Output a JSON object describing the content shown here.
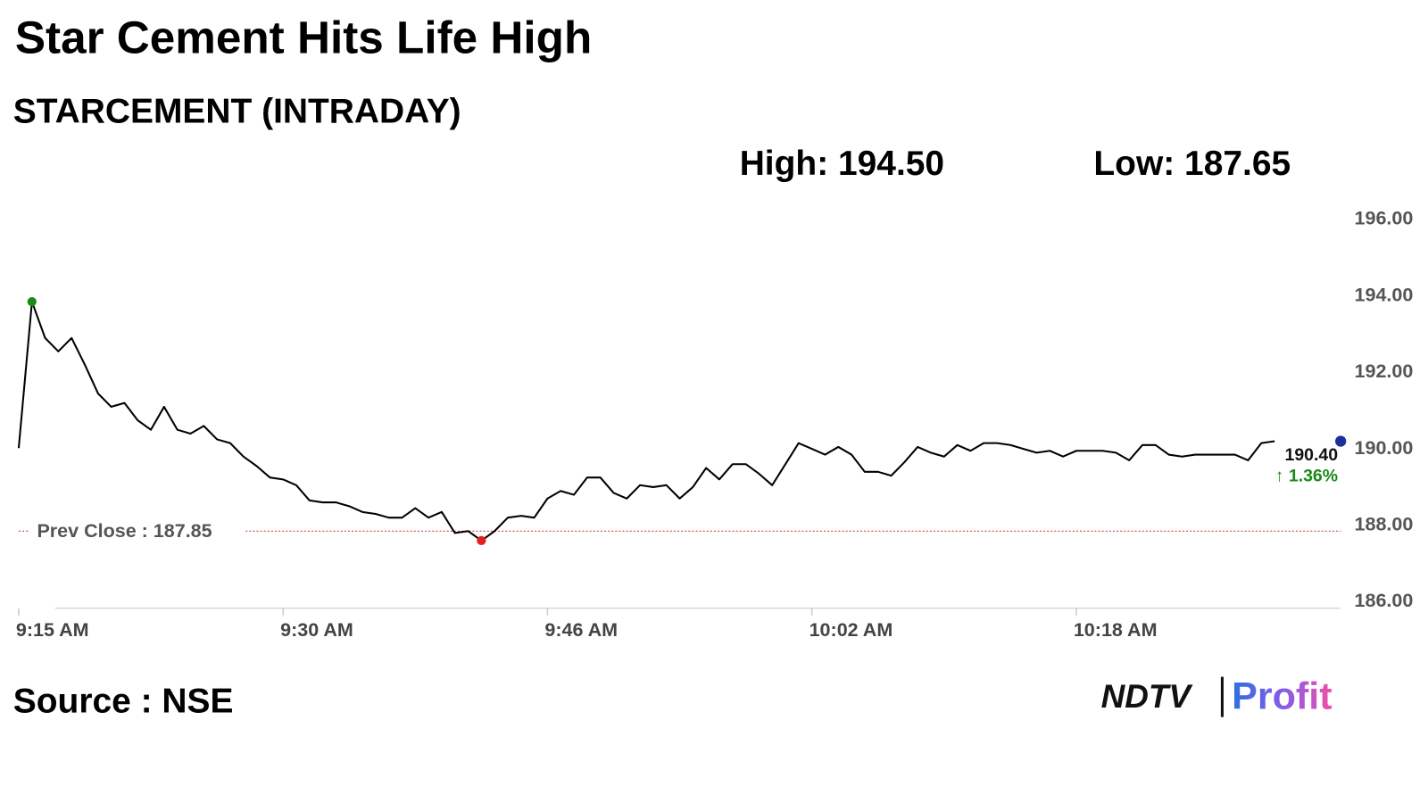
{
  "chart_data": {
    "type": "line",
    "title": "Star Cement Hits Life High",
    "subtitle": "STARCEMENT (INTRADAY)",
    "high_label": "High: 194.50",
    "low_label": "Low: 187.65",
    "last_label": "190.40",
    "change_label": "↑ 1.36%",
    "source": "Source : NSE",
    "logo": [
      "NDTV",
      "Profit"
    ],
    "prev_close": {
      "value": 187.85,
      "label": "Prev Close : 187.85"
    },
    "categories": [
      "9:15 AM",
      null,
      null,
      null,
      null,
      null,
      null,
      null,
      null,
      null,
      null,
      null,
      null,
      null,
      null,
      null,
      null,
      null,
      null,
      null,
      "9:30 AM",
      null,
      null,
      null,
      null,
      null,
      null,
      null,
      null,
      null,
      null,
      null,
      null,
      null,
      null,
      null,
      null,
      null,
      null,
      null,
      "9:46 AM",
      null,
      null,
      null,
      null,
      null,
      null,
      null,
      null,
      null,
      null,
      null,
      null,
      null,
      null,
      null,
      null,
      null,
      null,
      null,
      "10:02 AM",
      null,
      null,
      null,
      null,
      null,
      null,
      null,
      null,
      null,
      null,
      null,
      null,
      null,
      null,
      null,
      null,
      null,
      null,
      null,
      "10:18 AM",
      null,
      null,
      null,
      null,
      null,
      null,
      null,
      null,
      null,
      null,
      null,
      null,
      null,
      null,
      null
    ],
    "series": [
      {
        "name": "STARCEMENT",
        "color": "#000000",
        "values": [
          190.02,
          193.85,
          192.9,
          192.55,
          192.9,
          192.2,
          191.45,
          191.1,
          191.2,
          190.75,
          190.5,
          191.1,
          190.5,
          190.4,
          190.6,
          190.25,
          190.15,
          189.8,
          189.55,
          189.25,
          189.2,
          189.05,
          188.65,
          188.6,
          188.6,
          188.5,
          188.35,
          188.3,
          188.2,
          188.2,
          188.45,
          188.2,
          188.35,
          187.8,
          187.85,
          187.6,
          187.85,
          188.2,
          188.25,
          188.2,
          188.7,
          188.9,
          188.8,
          189.25,
          189.25,
          188.85,
          188.7,
          189.05,
          189.0,
          189.05,
          188.7,
          189.0,
          189.5,
          189.2,
          189.6,
          189.6,
          189.35,
          189.05,
          189.6,
          190.15,
          190.0,
          189.85,
          190.05,
          189.85,
          189.4,
          189.4,
          189.3,
          189.65,
          190.05,
          189.9,
          189.8,
          190.1,
          189.95,
          190.15,
          190.15,
          190.1,
          190.0,
          189.9,
          189.95,
          189.8,
          189.95,
          189.95,
          189.95,
          189.9,
          189.7,
          190.1,
          190.1,
          189.85,
          189.8,
          189.85,
          189.85,
          189.85,
          189.85,
          189.7,
          190.15,
          190.2
        ]
      }
    ],
    "high_index": 1,
    "low_index": 35,
    "ylim": [
      186,
      196
    ],
    "yticks": [
      {
        "value": 186,
        "label": "186.00"
      },
      {
        "value": 188,
        "label": "188.00"
      },
      {
        "value": 190,
        "label": "190.00"
      },
      {
        "value": 192,
        "label": "192.00"
      },
      {
        "value": 194,
        "label": "194.00"
      },
      {
        "value": 196,
        "label": "196.00"
      }
    ],
    "grid": false
  }
}
